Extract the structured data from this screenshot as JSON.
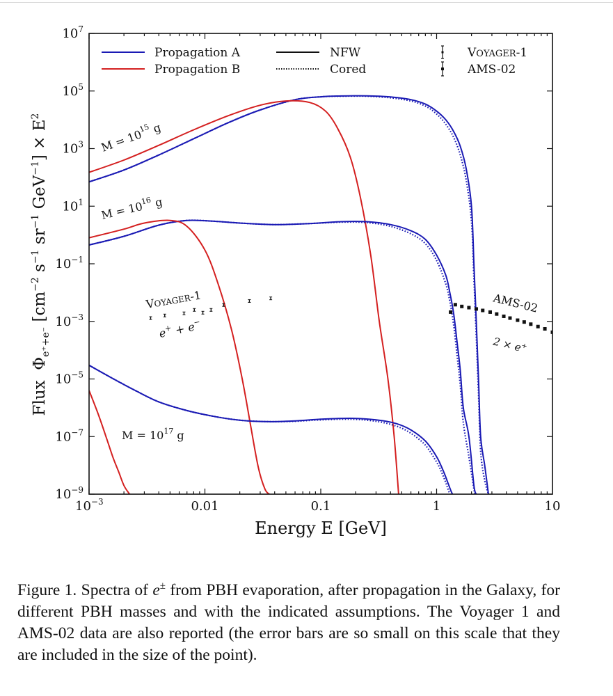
{
  "chart_data": {
    "type": "line",
    "title": "",
    "xlabel": "Energy E [GeV]",
    "ylabel": "Flux Φ_{e+ + e−} [cm^-2 s^-1 sr^-1 GeV^-1] × E^2",
    "xscale": "log",
    "yscale": "log",
    "xlim": [
      0.001,
      10
    ],
    "ylim": [
      1e-09,
      10000000.0
    ],
    "grid": false,
    "legend_position": "top",
    "x_ticks": [
      {
        "value": 0.001,
        "base": "10",
        "exp": "−3"
      },
      {
        "value": 0.01,
        "label": "0.01"
      },
      {
        "value": 0.1,
        "label": "0.1"
      },
      {
        "value": 1,
        "label": "1"
      },
      {
        "value": 10,
        "label": "10"
      }
    ],
    "y_ticks": [
      {
        "value": 10000000.0,
        "base": "10",
        "exp": "7"
      },
      {
        "value": 100000.0,
        "base": "10",
        "exp": "5"
      },
      {
        "value": 1000.0,
        "base": "10",
        "exp": "3"
      },
      {
        "value": 10.0,
        "base": "10",
        "exp": "1"
      },
      {
        "value": 0.1,
        "base": "10",
        "exp": "−1"
      },
      {
        "value": 0.001,
        "base": "10",
        "exp": "−3"
      },
      {
        "value": 1e-05,
        "base": "10",
        "exp": "−5"
      },
      {
        "value": 1e-07,
        "base": "10",
        "exp": "−7"
      },
      {
        "value": 1e-09,
        "base": "10",
        "exp": "−9"
      }
    ],
    "legend": [
      {
        "label": "Propagation A",
        "color": "#1a1ab4",
        "style": "solid"
      },
      {
        "label": "Propagation B",
        "color": "#d42020",
        "style": "solid"
      },
      {
        "label": "NFW",
        "color": "#111111",
        "style": "solid"
      },
      {
        "label": "Cored",
        "color": "#111111",
        "style": "dotted"
      },
      {
        "label": "VOYAGER-1",
        "color": "#111111",
        "style": "errorbar"
      },
      {
        "label": "AMS-02",
        "color": "#111111",
        "style": "errorbar"
      }
    ],
    "annotations": [
      {
        "text": "M = 10^15 g",
        "base": "M = 10",
        "exp": "15",
        "unit": " g"
      },
      {
        "text": "M = 10^16 g",
        "base": "M = 10",
        "exp": "16",
        "unit": " g"
      },
      {
        "text": "M = 10^17 g",
        "base": "M = 10",
        "exp": "17",
        "unit": " g"
      },
      {
        "text": "VOYAGER-1"
      },
      {
        "text": "e+ + e−"
      },
      {
        "text": "AMS-02"
      },
      {
        "text": "2 × e+"
      }
    ],
    "series": [
      {
        "name": "M=1e15 Propagation A NFW",
        "color": "#1a1ab4",
        "style": "solid",
        "x": [
          0.001,
          0.002,
          0.004,
          0.008,
          0.016,
          0.03,
          0.06,
          0.1,
          0.15,
          0.25,
          0.4,
          0.6,
          0.8,
          1.0,
          1.2,
          1.4,
          1.6,
          1.8,
          2.0,
          2.1,
          2.2,
          2.3,
          2.4,
          2.6,
          2.8
        ],
        "y": [
          70,
          180,
          600,
          2200,
          8000,
          22000,
          50000,
          63000,
          67000,
          68000,
          62000,
          50000,
          35000,
          20000,
          10000,
          4000,
          1200,
          200,
          10,
          0.1,
          0.001,
          1e-05,
          1e-07,
          1e-08,
          1e-09
        ]
      },
      {
        "name": "M=1e15 Propagation A Cored",
        "color": "#1a1ab4",
        "style": "dotted",
        "x": [
          0.001,
          0.002,
          0.004,
          0.008,
          0.016,
          0.03,
          0.06,
          0.1,
          0.15,
          0.25,
          0.4,
          0.6,
          0.8,
          1.0,
          1.2,
          1.4,
          1.6,
          1.8,
          2.0,
          2.1,
          2.2,
          2.3,
          2.4,
          2.6,
          2.8
        ],
        "y": [
          70,
          180,
          600,
          2200,
          8000,
          22000,
          50000,
          63000,
          66000,
          66000,
          58000,
          45000,
          30000,
          16000,
          7000,
          2500,
          600,
          80,
          3,
          0.03,
          0.0003,
          3e-06,
          3e-08,
          3e-09,
          1e-09
        ]
      },
      {
        "name": "M=1e15 Propagation B NFW",
        "color": "#d42020",
        "style": "solid",
        "x": [
          0.001,
          0.002,
          0.004,
          0.008,
          0.016,
          0.03,
          0.05,
          0.08,
          0.11,
          0.14,
          0.18,
          0.22,
          0.27,
          0.32,
          0.38,
          0.43,
          0.47
        ],
        "y": [
          150,
          400,
          1300,
          4500,
          14000,
          32000,
          45000,
          40000,
          20000,
          5000,
          500,
          20,
          0.2,
          0.001,
          1e-05,
          1e-07,
          1e-09
        ]
      },
      {
        "name": "M=1e16 Propagation A NFW",
        "color": "#1a1ab4",
        "style": "solid",
        "x": [
          0.001,
          0.002,
          0.004,
          0.007,
          0.012,
          0.02,
          0.04,
          0.08,
          0.15,
          0.25,
          0.4,
          0.6,
          0.8,
          1.0,
          1.2,
          1.3,
          1.4,
          1.5,
          1.6,
          1.7,
          1.9,
          2.1,
          2.2
        ],
        "y": [
          0.45,
          0.9,
          2.2,
          3.2,
          3.0,
          2.6,
          2.3,
          2.5,
          2.9,
          2.9,
          2.3,
          1.4,
          0.7,
          0.2,
          0.04,
          0.01,
          0.002,
          0.0002,
          2e-05,
          1e-06,
          1e-07,
          2e-09,
          1e-09
        ]
      },
      {
        "name": "M=1e16 Propagation A Cored",
        "color": "#1a1ab4",
        "style": "dotted",
        "x": [
          0.001,
          0.002,
          0.004,
          0.007,
          0.012,
          0.02,
          0.04,
          0.08,
          0.15,
          0.25,
          0.4,
          0.6,
          0.8,
          1.0,
          1.2,
          1.3,
          1.4,
          1.5,
          1.6,
          1.7,
          1.9,
          2.1,
          2.15
        ],
        "y": [
          0.45,
          0.9,
          2.2,
          3.2,
          3.0,
          2.6,
          2.3,
          2.5,
          2.8,
          2.7,
          2.0,
          1.1,
          0.5,
          0.13,
          0.02,
          0.005,
          0.0008,
          7e-05,
          6e-06,
          3e-07,
          2e-08,
          1.5e-09,
          1e-09
        ]
      },
      {
        "name": "M=1e16 Propagation B NFW",
        "color": "#d42020",
        "style": "solid",
        "x": [
          0.001,
          0.002,
          0.003,
          0.005,
          0.007,
          0.01,
          0.013,
          0.017,
          0.021,
          0.025,
          0.029,
          0.033,
          0.036
        ],
        "y": [
          0.8,
          1.6,
          2.6,
          3.2,
          2.0,
          0.3,
          0.02,
          0.0005,
          1e-05,
          2e-07,
          8e-09,
          1.5e-09,
          1e-09
        ]
      },
      {
        "name": "M=1e17 Propagation A NFW",
        "color": "#1a1ab4",
        "style": "solid",
        "x": [
          0.001,
          0.0015,
          0.0025,
          0.004,
          0.007,
          0.012,
          0.02,
          0.035,
          0.06,
          0.1,
          0.18,
          0.3,
          0.45,
          0.6,
          0.8,
          1.0,
          1.15,
          1.25,
          1.33,
          1.37
        ],
        "y": [
          3e-05,
          1.2e-05,
          4e-06,
          1.6e-06,
          8e-07,
          5e-07,
          3.7e-07,
          3.3e-07,
          3.5e-07,
          4e-07,
          4.3e-07,
          3.8e-07,
          2.8e-07,
          1.7e-07,
          7e-08,
          2e-08,
          6e-09,
          2.5e-09,
          1.3e-09,
          1e-09
        ]
      },
      {
        "name": "M=1e17 Propagation A Cored",
        "color": "#1a1ab4",
        "style": "dotted",
        "x": [
          0.001,
          0.0015,
          0.0025,
          0.004,
          0.007,
          0.012,
          0.02,
          0.035,
          0.06,
          0.1,
          0.18,
          0.3,
          0.45,
          0.6,
          0.8,
          1.0,
          1.1,
          1.2,
          1.27,
          1.31
        ],
        "y": [
          3e-05,
          1.2e-05,
          4e-06,
          1.6e-06,
          8e-07,
          5e-07,
          3.7e-07,
          3.3e-07,
          3.4e-07,
          3.8e-07,
          4e-07,
          3.4e-07,
          2.3e-07,
          1.3e-07,
          5e-08,
          1.3e-08,
          6e-09,
          2.5e-09,
          1.3e-09,
          1e-09
        ]
      },
      {
        "name": "M=1e17 Propagation B NFW",
        "color": "#d42020",
        "style": "solid",
        "x": [
          0.001,
          0.0012,
          0.0014,
          0.0016,
          0.0018,
          0.002,
          0.0022,
          0.00225
        ],
        "y": [
          4e-06,
          6e-07,
          1e-07,
          2e-08,
          6e-09,
          2e-09,
          1.1e-09,
          1e-09
        ]
      }
    ],
    "data_points": [
      {
        "name": "VOYAGER-1 e+ + e−",
        "x": [
          0.0034,
          0.0045,
          0.0066,
          0.0081,
          0.0096,
          0.0113,
          0.0145,
          0.0242,
          0.037
        ],
        "y": [
          0.0013,
          0.0016,
          0.0019,
          0.0025,
          0.002,
          0.0025,
          0.0037,
          0.0051,
          0.0063
        ]
      },
      {
        "name": "AMS-02 2 × e+",
        "x": [
          1.32,
          1.45,
          1.65,
          1.9,
          2.2,
          2.5,
          2.9,
          3.3,
          3.8,
          4.3,
          5.0,
          5.7,
          6.5,
          7.5,
          8.6,
          10.0
        ],
        "y": [
          0.0021,
          0.0038,
          0.0033,
          0.003,
          0.0027,
          0.0024,
          0.0021,
          0.0018,
          0.0015,
          0.0013,
          0.0011,
          0.00095,
          0.0008,
          0.00066,
          0.00055,
          0.00042
        ]
      }
    ]
  },
  "caption": {
    "prefix": "Figure 1. Spectra of ",
    "symbol": "e",
    "symbol_sup": "±",
    "rest": " from PBH evaporation, after propagation in the Galaxy, for different PBH masses and with the indicated assumptions. The Voyager 1 and AMS-02 data are also reported (the error bars are so small on this scale that they are included in the size of the point)."
  }
}
